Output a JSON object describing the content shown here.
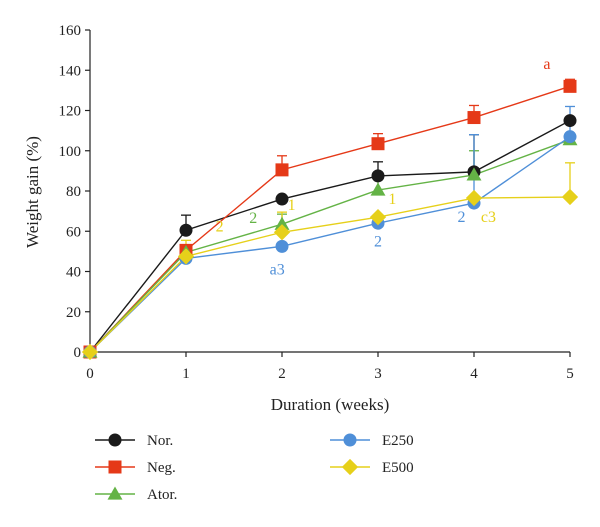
{
  "chart_data": {
    "type": "line",
    "xlabel": "Duration (weeks)",
    "ylabel": "Weight gain (%)",
    "x": [
      0,
      1,
      2,
      3,
      4,
      5
    ],
    "xlim": [
      0,
      5
    ],
    "ylim": [
      0,
      160
    ],
    "xticks": [
      0,
      1,
      2,
      3,
      4,
      5
    ],
    "yticks": [
      0,
      20,
      40,
      60,
      80,
      100,
      120,
      140,
      160
    ],
    "grid": false,
    "legend_position": "bottom",
    "series": [
      {
        "name": "Nor.",
        "color": "#1a1a1a",
        "marker": "circle",
        "values": [
          0,
          60.5,
          76,
          87.5,
          89.5,
          115
        ],
        "errors": [
          0,
          7.5,
          0,
          7,
          18.5,
          0
        ]
      },
      {
        "name": "Neg.",
        "color": "#e53918",
        "marker": "square",
        "values": [
          0,
          50.5,
          90.5,
          103.5,
          116.5,
          132
        ],
        "errors": [
          0,
          0,
          7,
          5,
          6,
          3.5
        ]
      },
      {
        "name": "Ator.",
        "color": "#64b346",
        "marker": "triangle",
        "values": [
          0,
          49.5,
          63.5,
          80.5,
          88,
          105.5
        ],
        "errors": [
          0,
          0,
          5,
          7,
          12,
          0
        ]
      },
      {
        "name": "E250",
        "color": "#4f8fd8",
        "marker": "circle",
        "values": [
          0,
          46.5,
          52.5,
          64,
          74,
          107
        ],
        "errors": [
          0,
          0,
          0,
          0,
          34,
          15
        ]
      },
      {
        "name": "E500",
        "color": "#e6d01a",
        "marker": "diamond",
        "values": [
          0,
          47.5,
          59.5,
          67,
          76.5,
          77
        ],
        "errors": [
          0,
          8,
          10,
          0,
          0,
          17
        ]
      }
    ],
    "annotations": [
      {
        "text": "a",
        "x": 4.76,
        "y": 140.5,
        "color": "#e53918"
      },
      {
        "text": "2",
        "x": 1.35,
        "y": 60,
        "color": "#e6d01a"
      },
      {
        "text": "2",
        "x": 1.7,
        "y": 64,
        "color": "#64b346"
      },
      {
        "text": "1",
        "x": 2.1,
        "y": 70.5,
        "color": "#e6d01a"
      },
      {
        "text": "a3",
        "x": 1.95,
        "y": 38.5,
        "color": "#4f8fd8"
      },
      {
        "text": "1",
        "x": 3.15,
        "y": 73.5,
        "color": "#e6d01a"
      },
      {
        "text": "2",
        "x": 3.0,
        "y": 52.5,
        "color": "#4f8fd8"
      },
      {
        "text": "2",
        "x": 3.87,
        "y": 64.5,
        "color": "#4f8fd8"
      },
      {
        "text": "c3",
        "x": 4.15,
        "y": 64.5,
        "color": "#e6d01a"
      }
    ]
  }
}
